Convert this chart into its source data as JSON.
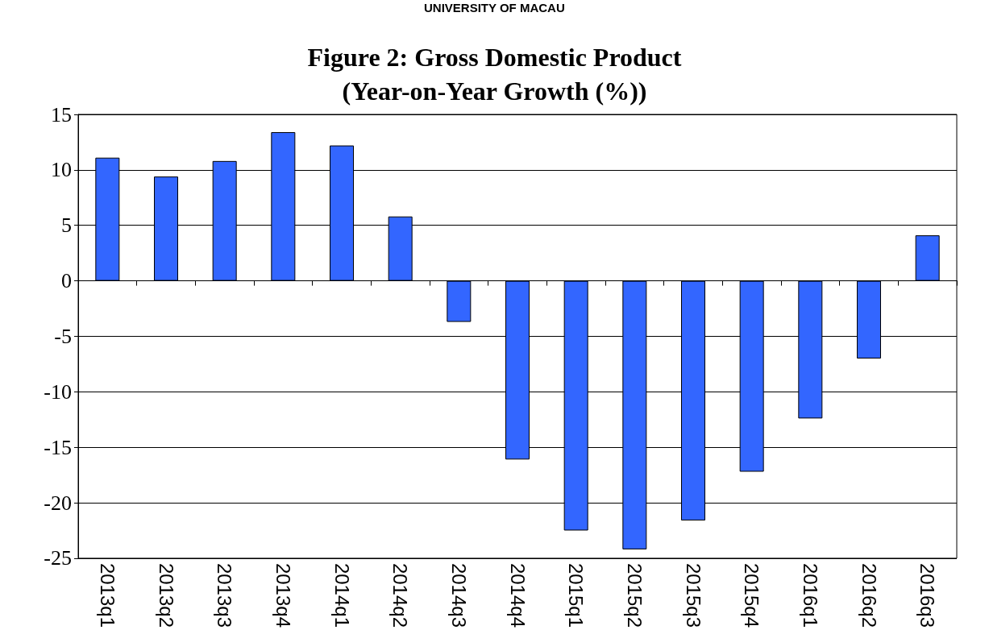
{
  "chart_data": {
    "type": "bar",
    "title": "Figure 2: Gross Domestic Product\n(Year-on-Year Growth (%))",
    "annotations": [
      "UNIVERSITY OF MACAU"
    ],
    "categories": [
      "2013q1",
      "2013q2",
      "2013q3",
      "2013q4",
      "2014q1",
      "2014q2",
      "2014q3",
      "2014q4",
      "2015q1",
      "2015q2",
      "2015q3",
      "2015q4",
      "2016q1",
      "2016q2",
      "2016q3"
    ],
    "values": [
      11.1,
      9.4,
      10.8,
      13.4,
      12.2,
      5.8,
      -3.7,
      -16.1,
      -22.5,
      -24.2,
      -21.6,
      -17.2,
      -12.4,
      -7.0,
      4.1
    ],
    "color": "#3366ff",
    "ylim": [
      -25,
      15
    ],
    "yticks": [
      -25,
      -20,
      -15,
      -10,
      -5,
      0,
      5,
      10,
      15
    ],
    "grid": "y"
  }
}
